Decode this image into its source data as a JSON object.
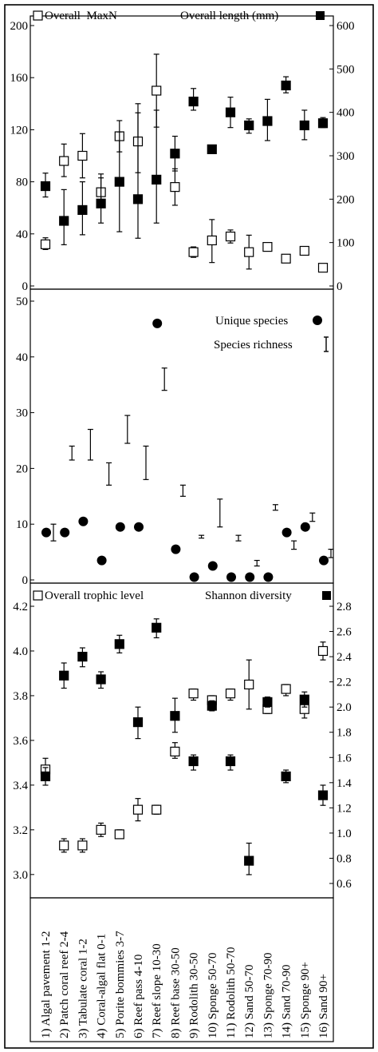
{
  "categories": [
    "1) Algal pavement 1-2",
    "2) Patch coral reef 2-4",
    "3) Tabulate coral 1-2",
    "4) Coral-algal flat 0-1",
    "5) Porite bommies 3-7",
    "6) Reef pass 4-10",
    "7) Reef slope 10-30",
    "8) Reef base 30-50",
    "9) Rodolith 30-50",
    "10) Sponge 50-70",
    "11) Rodolith 50-70",
    "12) Sand 50-70",
    "13) Sponge 70-90",
    "14) Sand 70-90",
    "15) Sponge 90+",
    "16) Sand 90+"
  ],
  "chart_data": [
    {
      "type": "scatter",
      "legend_left": "Overall  MaxN",
      "legend_right": "Overall length (mm)",
      "y_left": {
        "lim": [
          0,
          200
        ],
        "ticks": [
          "0",
          "40",
          "80",
          "120",
          "160",
          "200"
        ]
      },
      "y_right": {
        "lim": [
          0,
          600
        ],
        "ticks": [
          "0",
          "100",
          "200",
          "300",
          "400",
          "500",
          "600"
        ]
      },
      "series": [
        {
          "name": "Overall  MaxN",
          "axis": "left",
          "marker": "open-square",
          "points": [
            {
              "x": 1,
              "y": 32,
              "lo": 28,
              "hi": 37
            },
            {
              "x": 2,
              "y": 96,
              "lo": 84,
              "hi": 109
            },
            {
              "x": 3,
              "y": 100,
              "lo": 83,
              "hi": 117
            },
            {
              "x": 4,
              "y": 72,
              "lo": 61,
              "hi": 83
            },
            {
              "x": 5,
              "y": 115,
              "lo": 103,
              "hi": 127
            },
            {
              "x": 6,
              "y": 111,
              "lo": 87,
              "hi": 133
            },
            {
              "x": 7,
              "y": 150,
              "lo": 122,
              "hi": 178
            },
            {
              "x": 8,
              "y": 76,
              "lo": 62,
              "hi": 90
            },
            {
              "x": 9,
              "y": 26,
              "lo": 22,
              "hi": 30
            },
            {
              "x": 10,
              "y": 35,
              "lo": 18,
              "hi": 51
            },
            {
              "x": 11,
              "y": 38,
              "lo": 33,
              "hi": 43
            },
            {
              "x": 12,
              "y": 26,
              "lo": 13,
              "hi": 39
            },
            {
              "x": 13,
              "y": 30,
              "lo": 30,
              "hi": 30
            },
            {
              "x": 14,
              "y": 21,
              "lo": 18,
              "hi": 24
            },
            {
              "x": 15,
              "y": 27,
              "lo": 27,
              "hi": 27
            },
            {
              "x": 16,
              "y": 14,
              "lo": 14,
              "hi": 14
            }
          ]
        },
        {
          "name": "Overall length (mm)",
          "axis": "right",
          "marker": "filled-square",
          "points": [
            {
              "x": 1,
              "y": 230,
              "lo": 205,
              "hi": 260
            },
            {
              "x": 2,
              "y": 150,
              "lo": 95,
              "hi": 222
            },
            {
              "x": 3,
              "y": 175,
              "lo": 118,
              "hi": 240
            },
            {
              "x": 4,
              "y": 190,
              "lo": 145,
              "hi": 258
            },
            {
              "x": 5,
              "y": 240,
              "lo": 125,
              "hi": 355
            },
            {
              "x": 6,
              "y": 200,
              "lo": 110,
              "hi": 420
            },
            {
              "x": 7,
              "y": 245,
              "lo": 145,
              "hi": 405
            },
            {
              "x": 8,
              "y": 305,
              "lo": 265,
              "hi": 345
            },
            {
              "x": 9,
              "y": 425,
              "lo": 405,
              "hi": 455
            },
            {
              "x": 10,
              "y": 315,
              "lo": 315,
              "hi": 315
            },
            {
              "x": 11,
              "y": 400,
              "lo": 365,
              "hi": 435
            },
            {
              "x": 12,
              "y": 370,
              "lo": 352,
              "hi": 385
            },
            {
              "x": 13,
              "y": 380,
              "lo": 335,
              "hi": 430
            },
            {
              "x": 14,
              "y": 462,
              "lo": 445,
              "hi": 482
            },
            {
              "x": 15,
              "y": 370,
              "lo": 337,
              "hi": 405
            },
            {
              "x": 16,
              "y": 375,
              "lo": 365,
              "hi": 388
            }
          ]
        }
      ]
    },
    {
      "type": "scatter",
      "legend_unique": "Unique species",
      "legend_richness": "Species richness",
      "y_left": {
        "lim": [
          0,
          50
        ],
        "ticks": [
          "0",
          "10",
          "20",
          "30",
          "40",
          "50"
        ]
      },
      "series": [
        {
          "name": "Unique species",
          "marker": "filled-circle",
          "points": [
            {
              "x": 1,
              "y": 8.5
            },
            {
              "x": 2,
              "y": 8.5
            },
            {
              "x": 3,
              "y": 10.5
            },
            {
              "x": 4,
              "y": 3.5
            },
            {
              "x": 5,
              "y": 9.5
            },
            {
              "x": 6,
              "y": 9.5
            },
            {
              "x": 7,
              "y": 46
            },
            {
              "x": 8,
              "y": 5.5
            },
            {
              "x": 9,
              "y": 0.5
            },
            {
              "x": 10,
              "y": 2.5
            },
            {
              "x": 11,
              "y": 0.5
            },
            {
              "x": 12,
              "y": 0.5
            },
            {
              "x": 13,
              "y": 0.5
            },
            {
              "x": 14,
              "y": 8.5
            },
            {
              "x": 15,
              "y": 9.5
            },
            {
              "x": 16,
              "y": 3.5
            }
          ]
        },
        {
          "name": "Species richness",
          "marker": "range-bar",
          "points": [
            {
              "x": 1,
              "lo": 7,
              "hi": 10
            },
            {
              "x": 2,
              "lo": 21.5,
              "hi": 24
            },
            {
              "x": 3,
              "lo": 21.5,
              "hi": 27
            },
            {
              "x": 4,
              "lo": 17,
              "hi": 21
            },
            {
              "x": 5,
              "lo": 24.5,
              "hi": 29.5
            },
            {
              "x": 6,
              "lo": 18,
              "hi": 24
            },
            {
              "x": 7,
              "lo": 34,
              "hi": 38
            },
            {
              "x": 8,
              "lo": 15,
              "hi": 17
            },
            {
              "x": 9,
              "lo": 7.5,
              "hi": 8
            },
            {
              "x": 10,
              "lo": 9.5,
              "hi": 14.5
            },
            {
              "x": 11,
              "lo": 7,
              "hi": 8
            },
            {
              "x": 12,
              "lo": 2.5,
              "hi": 3.5
            },
            {
              "x": 13,
              "lo": 12.5,
              "hi": 13.5
            },
            {
              "x": 14,
              "lo": 5.5,
              "hi": 7
            },
            {
              "x": 15,
              "lo": 10.5,
              "hi": 12
            },
            {
              "x": 16,
              "lo": 4,
              "hi": 5.5
            }
          ]
        }
      ]
    },
    {
      "type": "scatter",
      "legend_left": "Overall trophic level",
      "legend_right": "Shannon diversity",
      "y_left": {
        "lim": [
          2.96,
          4.2
        ],
        "ticks": [
          "3.0",
          "3.2",
          "3.4",
          "3.6",
          "3.8",
          "4.0",
          "4.2"
        ]
      },
      "y_right": {
        "lim": [
          0.6,
          2.8
        ],
        "ticks": [
          "0.6",
          "0.8",
          "1.0",
          "1.2",
          "1.4",
          "1.6",
          "1.8",
          "2.0",
          "2.2",
          "2.4",
          "2.6",
          "2.8"
        ]
      },
      "series": [
        {
          "name": "Overall trophic level",
          "axis": "left",
          "marker": "open-square",
          "points": [
            {
              "x": 1,
              "y": 3.47,
              "lo": 3.45,
              "hi": 3.52
            },
            {
              "x": 2,
              "y": 3.13,
              "lo": 3.1,
              "hi": 3.16
            },
            {
              "x": 3,
              "y": 3.13,
              "lo": 3.1,
              "hi": 3.16
            },
            {
              "x": 4,
              "y": 3.2,
              "lo": 3.17,
              "hi": 3.23
            },
            {
              "x": 5,
              "y": 3.18,
              "lo": 3.17,
              "hi": 3.2
            },
            {
              "x": 6,
              "y": 3.29,
              "lo": 3.24,
              "hi": 3.34
            },
            {
              "x": 7,
              "y": 3.29,
              "lo": 3.27,
              "hi": 3.31
            },
            {
              "x": 8,
              "y": 3.55,
              "lo": 3.52,
              "hi": 3.59
            },
            {
              "x": 9,
              "y": 3.81,
              "lo": 3.78,
              "hi": 3.83
            },
            {
              "x": 10,
              "y": 3.78,
              "lo": 3.76,
              "hi": 3.8
            },
            {
              "x": 11,
              "y": 3.81,
              "lo": 3.78,
              "hi": 3.83
            },
            {
              "x": 12,
              "y": 3.85,
              "lo": 3.74,
              "hi": 3.96
            },
            {
              "x": 13,
              "y": 3.74,
              "lo": 3.72,
              "hi": 3.77
            },
            {
              "x": 14,
              "y": 3.83,
              "lo": 3.8,
              "hi": 3.85
            },
            {
              "x": 15,
              "y": 3.74,
              "lo": 3.7,
              "hi": 3.78
            },
            {
              "x": 16,
              "y": 4.0,
              "lo": 3.96,
              "hi": 4.04
            }
          ]
        },
        {
          "name": "Shannon diversity",
          "axis": "right",
          "marker": "filled-square",
          "points": [
            {
              "x": 1,
              "y": 1.45,
              "lo": 1.38,
              "hi": 1.52
            },
            {
              "x": 2,
              "y": 2.25,
              "lo": 2.15,
              "hi": 2.35
            },
            {
              "x": 3,
              "y": 2.4,
              "lo": 2.32,
              "hi": 2.47
            },
            {
              "x": 4,
              "y": 2.22,
              "lo": 2.15,
              "hi": 2.28
            },
            {
              "x": 5,
              "y": 2.5,
              "lo": 2.43,
              "hi": 2.57
            },
            {
              "x": 6,
              "y": 1.88,
              "lo": 1.75,
              "hi": 2.0
            },
            {
              "x": 7,
              "y": 2.63,
              "lo": 2.55,
              "hi": 2.7
            },
            {
              "x": 8,
              "y": 1.93,
              "lo": 1.8,
              "hi": 2.07
            },
            {
              "x": 9,
              "y": 1.57,
              "lo": 1.5,
              "hi": 1.62
            },
            {
              "x": 10,
              "y": 2.01,
              "lo": 1.97,
              "hi": 2.05
            },
            {
              "x": 11,
              "y": 1.57,
              "lo": 1.5,
              "hi": 1.62
            },
            {
              "x": 12,
              "y": 0.78,
              "lo": 0.67,
              "hi": 0.92
            },
            {
              "x": 13,
              "y": 2.04,
              "lo": 2.0,
              "hi": 2.08
            },
            {
              "x": 14,
              "y": 1.45,
              "lo": 1.4,
              "hi": 1.5
            },
            {
              "x": 15,
              "y": 2.06,
              "lo": 2.0,
              "hi": 2.12
            },
            {
              "x": 16,
              "y": 1.3,
              "lo": 1.22,
              "hi": 1.38
            }
          ]
        }
      ]
    }
  ]
}
